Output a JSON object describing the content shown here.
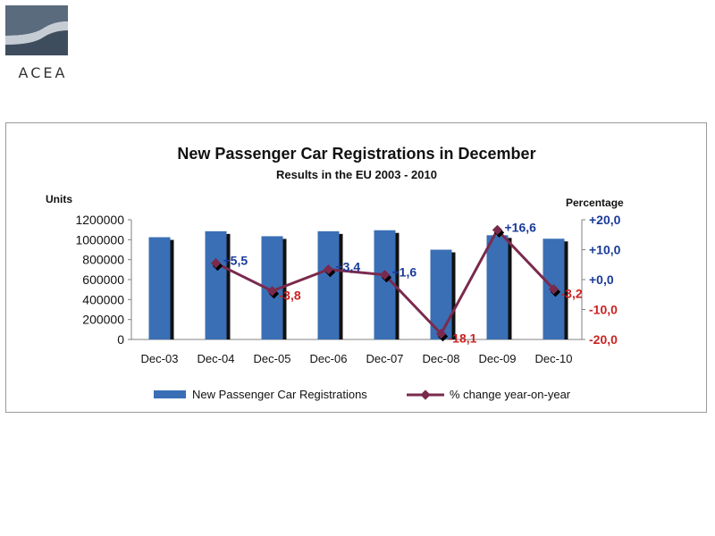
{
  "logo": {
    "text": "ACEA",
    "colors": [
      "#5a6b7d",
      "#a9b4bf",
      "#3e4d5e"
    ]
  },
  "chart_data": {
    "type": "bar",
    "title": "New Passenger Car Registrations in December",
    "subtitle": "Results in the EU 2003 - 2010",
    "categories": [
      "Dec-03",
      "Dec-04",
      "Dec-05",
      "Dec-06",
      "Dec-07",
      "Dec-08",
      "Dec-09",
      "Dec-10"
    ],
    "y_left": {
      "label": "Units",
      "ylim": [
        0,
        1200000
      ],
      "ticks": [
        "1200000",
        "1000000",
        "800000",
        "600000",
        "400000",
        "200000",
        "0"
      ]
    },
    "y_right": {
      "label": "Percentage",
      "ylim": [
        -20,
        20
      ],
      "ticks": [
        "+20,0",
        "+10,0",
        "+0,0",
        "-10,0",
        "-20,0"
      ],
      "tick_values": [
        20,
        10,
        0,
        -10,
        -20
      ]
    },
    "series": [
      {
        "name": "New Passenger Car Registrations",
        "type": "bar",
        "axis": "left",
        "color": "#3a6fb5",
        "values": [
          1025000,
          1085000,
          1035000,
          1085000,
          1095000,
          900000,
          1045000,
          1010000
        ]
      },
      {
        "name": "% change year-on-year",
        "type": "line",
        "axis": "right",
        "color": "#7a2a4d",
        "values": [
          null,
          5.5,
          -3.8,
          3.4,
          1.6,
          -18.1,
          16.6,
          -3.2
        ],
        "labels": [
          "",
          "+5,5",
          "-3,8",
          "+3,4",
          "+1,6",
          "-18,1",
          "+16,6",
          "-3,2"
        ],
        "label_colors": {
          "positive": "#1a3a9a",
          "negative": "#cc2222"
        }
      }
    ],
    "legend": "bottom",
    "grid": false
  }
}
